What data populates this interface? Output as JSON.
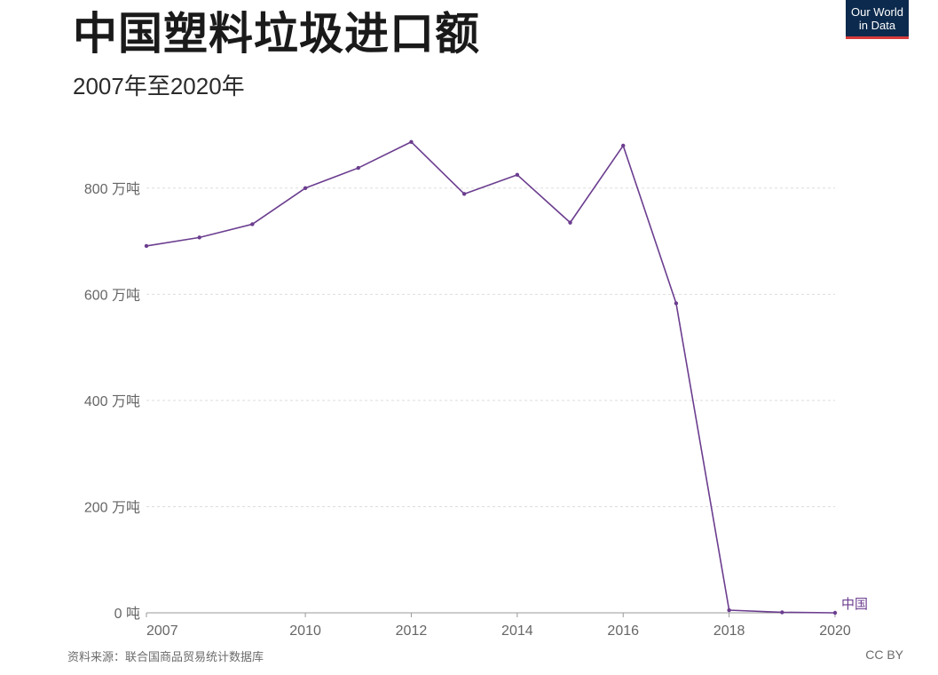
{
  "header": {
    "title": "中国塑料垃圾进口额",
    "subtitle": "2007年至2020年"
  },
  "logo": {
    "line1": "Our World",
    "line2": "in Data"
  },
  "footer": {
    "source": "资料来源：联合国商品贸易统计数据库",
    "license": "CC BY"
  },
  "colors": {
    "series": "#6b3d8f",
    "grid": "#dddddd",
    "axis": "#999999"
  },
  "chart_data": {
    "type": "line",
    "title": "中国塑料垃圾进口额",
    "subtitle": "2007年至2020年",
    "xlabel": "",
    "ylabel": "",
    "x": [
      2007,
      2008,
      2009,
      2010,
      2011,
      2012,
      2013,
      2014,
      2015,
      2016,
      2017,
      2018,
      2019,
      2020
    ],
    "series": [
      {
        "name": "中国",
        "values": [
          691,
          707,
          732,
          800,
          838,
          887,
          789,
          825,
          735,
          880,
          583,
          5,
          1,
          0
        ]
      }
    ],
    "ylim": [
      0,
      900
    ],
    "xlim": [
      2007,
      2020
    ],
    "yticks": [
      {
        "value": 0,
        "label": "0 吨"
      },
      {
        "value": 200,
        "label": "200 万吨"
      },
      {
        "value": 400,
        "label": "400 万吨"
      },
      {
        "value": 600,
        "label": "600 万吨"
      },
      {
        "value": 800,
        "label": "800 万吨"
      }
    ],
    "xticks": [
      {
        "value": 2007,
        "label": "2007"
      },
      {
        "value": 2010,
        "label": "2010"
      },
      {
        "value": 2012,
        "label": "2012"
      },
      {
        "value": 2014,
        "label": "2014"
      },
      {
        "value": 2016,
        "label": "2016"
      },
      {
        "value": 2018,
        "label": "2018"
      },
      {
        "value": 2020,
        "label": "2020"
      }
    ],
    "grid": true,
    "legend": "end-of-line"
  }
}
